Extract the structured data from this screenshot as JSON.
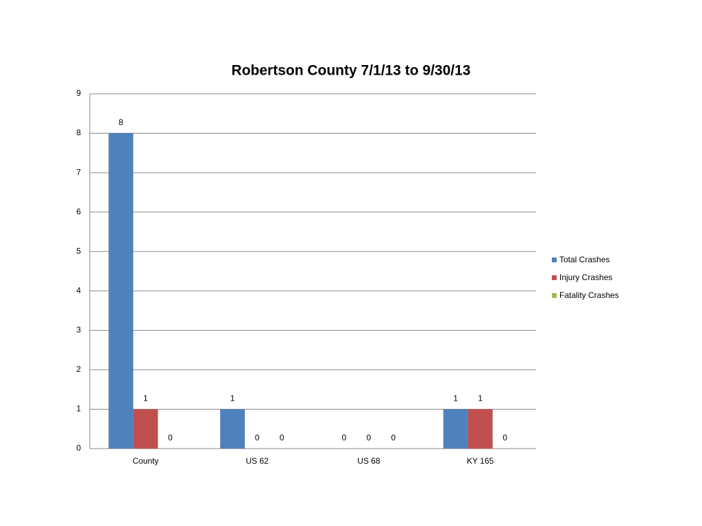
{
  "chart_data": {
    "type": "bar",
    "title": "Robertson County 7/1/13 to 9/30/13",
    "categories": [
      "County",
      "US 62",
      "US 68",
      "KY 165"
    ],
    "series": [
      {
        "name": "Total Crashes",
        "color": "#4f81bd",
        "values": [
          8,
          1,
          0,
          1
        ]
      },
      {
        "name": "Injury Crashes",
        "color": "#c0504d",
        "values": [
          1,
          0,
          0,
          1
        ]
      },
      {
        "name": "Fatality Crashes",
        "color": "#9bbb59",
        "values": [
          0,
          0,
          0,
          0
        ]
      }
    ],
    "ylim": [
      0,
      9
    ],
    "yticks": [
      0,
      1,
      2,
      3,
      4,
      5,
      6,
      7,
      8,
      9
    ],
    "grid": true,
    "legend": "right",
    "data_labels": true
  }
}
